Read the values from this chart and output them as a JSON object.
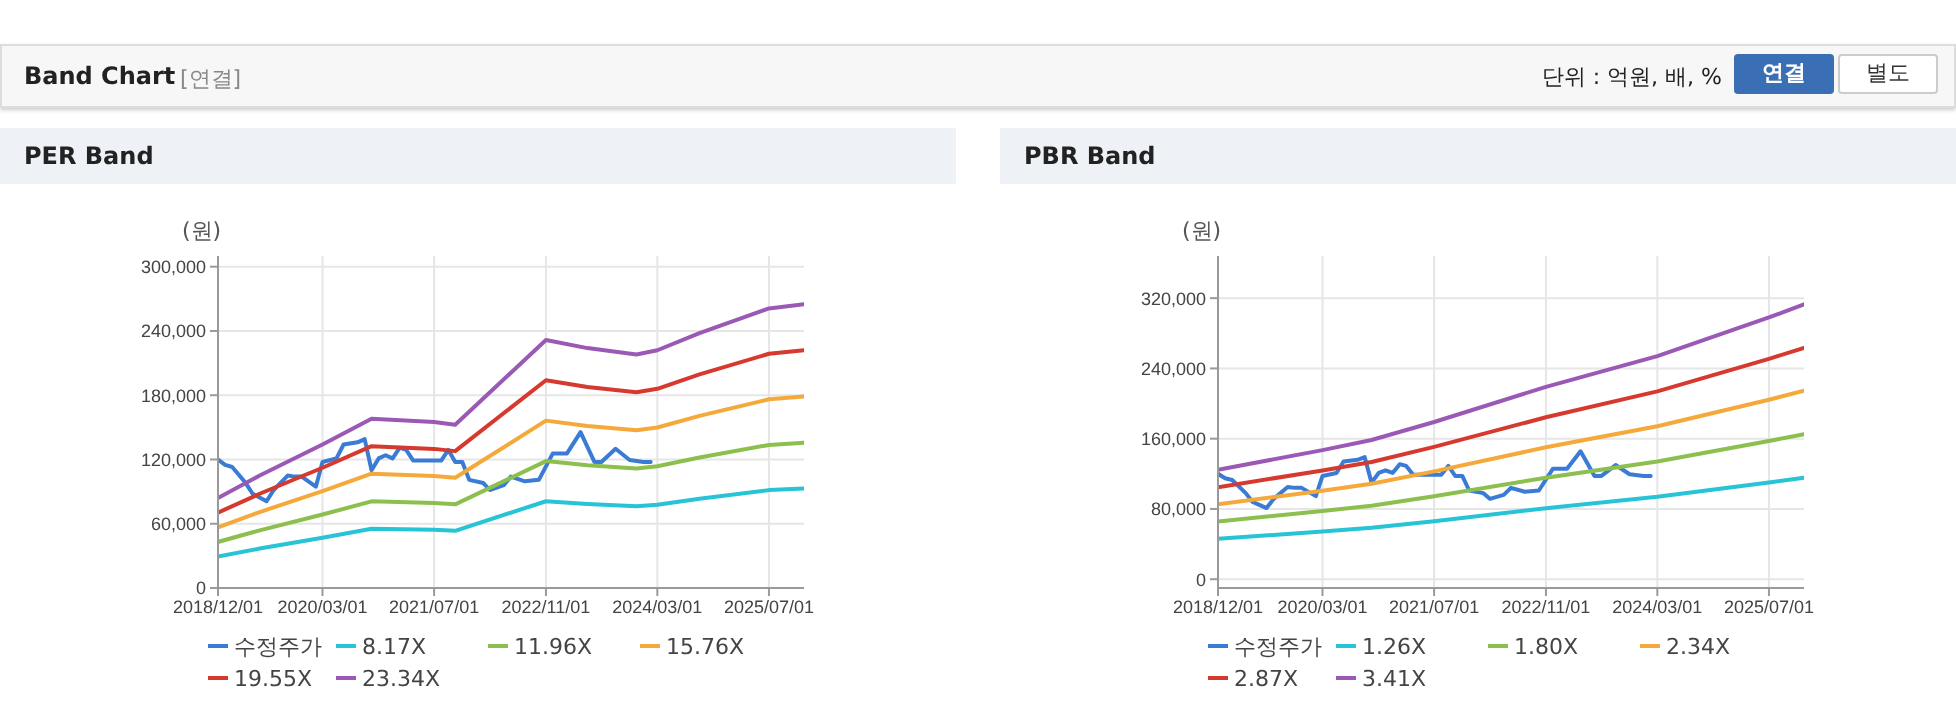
{
  "chart_data": [
    {
      "type": "line",
      "title": "PER Band",
      "ylabel": "(원)",
      "annotations": [
        "Band Chart",
        "[연결]",
        "단위 : 억원, 배, %",
        "연결",
        "별도"
      ],
      "xlim": [
        "2018-12-01",
        "2025-12-01"
      ],
      "xticks": [
        {
          "value": "2018-12-01",
          "label": "2018/12/01"
        },
        {
          "value": "2020-03-01",
          "label": "2020/03/01"
        },
        {
          "value": "2021-07-01",
          "label": "2021/07/01"
        },
        {
          "value": "2022-11-01",
          "label": "2022/11/01"
        },
        {
          "value": "2024-03-01",
          "label": "2024/03/01"
        },
        {
          "value": "2025-07-01",
          "label": "2025/07/01"
        }
      ],
      "ylim": [
        0,
        310000
      ],
      "yticks": [
        {
          "value": 0,
          "label": "0"
        },
        {
          "value": 60000,
          "label": "60,000"
        },
        {
          "value": 120000,
          "label": "120,000"
        },
        {
          "value": 180000,
          "label": "180,000"
        },
        {
          "value": 240000,
          "label": "240,000"
        },
        {
          "value": 300000,
          "label": "300,000"
        }
      ],
      "grid": true,
      "legend": "bottom",
      "marker": "none",
      "line_style": "solid",
      "series": [
        {
          "name": "수정주가",
          "color": "#3a7bd5",
          "x": [
            "2018-12",
            "2019-01",
            "2019-02",
            "2019-04",
            "2019-05",
            "2019-07",
            "2019-08",
            "2019-10",
            "2019-11",
            "2019-12",
            "2020-02",
            "2020-03",
            "2020-05",
            "2020-06",
            "2020-08",
            "2020-09",
            "2020-10",
            "2020-11",
            "2020-12",
            "2021-01",
            "2021-02",
            "2021-03",
            "2021-04",
            "2021-08",
            "2021-09",
            "2021-10",
            "2021-11",
            "2021-12",
            "2022-02",
            "2022-03",
            "2022-05",
            "2022-06",
            "2022-08",
            "2022-10",
            "2022-12",
            "2023-02",
            "2023-04",
            "2023-06",
            "2023-07",
            "2023-09",
            "2023-11",
            "2024-01",
            "2024-02"
          ],
          "values": [
            120000,
            115000,
            113000,
            98000,
            88000,
            81000,
            91500,
            105000,
            104000,
            104000,
            94600,
            117600,
            121000,
            134000,
            136000,
            139000,
            110000,
            121000,
            124000,
            121000,
            131000,
            129000,
            119000,
            119000,
            129000,
            117600,
            117600,
            101000,
            98000,
            91500,
            96000,
            104000,
            99600,
            101000,
            125700,
            125700,
            145600,
            117600,
            117600,
            130000,
            119500,
            117600,
            117600
          ]
        },
        {
          "name": "8.17X",
          "color": "#27c3d6",
          "x": [
            "2018-12",
            "2019-06",
            "2020-03",
            "2020-10",
            "2021-07",
            "2021-10",
            "2022-11",
            "2023-05",
            "2023-12",
            "2024-03",
            "2024-09",
            "2025-07",
            "2025-12"
          ],
          "values": [
            29400,
            36800,
            46900,
            55300,
            54300,
            53400,
            81000,
            78400,
            76300,
            77700,
            83300,
            91400,
            92800
          ]
        },
        {
          "name": "11.96X",
          "color": "#8dbf4e",
          "x": [
            "2018-12",
            "2019-06",
            "2020-03",
            "2020-10",
            "2021-07",
            "2021-10",
            "2022-11",
            "2023-05",
            "2023-12",
            "2024-03",
            "2024-09",
            "2025-07",
            "2025-12"
          ],
          "values": [
            43000,
            53800,
            68600,
            80900,
            79400,
            78100,
            118500,
            114700,
            111600,
            113700,
            121900,
            133600,
            135700
          ]
        },
        {
          "name": "15.76X",
          "color": "#f5a93a",
          "x": [
            "2018-12",
            "2019-06",
            "2020-03",
            "2020-10",
            "2021-07",
            "2021-10",
            "2022-11",
            "2023-05",
            "2023-12",
            "2024-03",
            "2024-09",
            "2025-07",
            "2025-12"
          ],
          "values": [
            56700,
            70900,
            90500,
            106700,
            104600,
            102900,
            156300,
            151200,
            147200,
            149900,
            160700,
            176200,
            178900
          ]
        },
        {
          "name": "19.55X",
          "color": "#d63a2f",
          "x": [
            "2018-12",
            "2019-06",
            "2020-03",
            "2020-10",
            "2021-07",
            "2021-10",
            "2022-11",
            "2023-05",
            "2023-12",
            "2024-03",
            "2024-09",
            "2025-07",
            "2025-12"
          ],
          "values": [
            70400,
            88000,
            112300,
            132400,
            129900,
            127800,
            194000,
            187700,
            182700,
            186000,
            199400,
            218700,
            222000
          ]
        },
        {
          "name": "23.34X",
          "color": "#9b59b6",
          "x": [
            "2018-12",
            "2019-06",
            "2020-03",
            "2020-10",
            "2021-07",
            "2021-10",
            "2022-11",
            "2023-05",
            "2023-12",
            "2024-03",
            "2024-09",
            "2025-07",
            "2025-12"
          ],
          "values": [
            84000,
            105000,
            134000,
            158000,
            155000,
            152500,
            231500,
            224000,
            218000,
            222000,
            238000,
            261000,
            265000
          ]
        }
      ]
    },
    {
      "type": "line",
      "title": "PBR Band",
      "ylabel": "(원)",
      "xlim": [
        "2018-12-01",
        "2025-12-01"
      ],
      "xticks": [
        {
          "value": "2018-12-01",
          "label": "2018/12/01"
        },
        {
          "value": "2020-03-01",
          "label": "2020/03/01"
        },
        {
          "value": "2021-07-01",
          "label": "2021/07/01"
        },
        {
          "value": "2022-11-01",
          "label": "2022/11/01"
        },
        {
          "value": "2024-03-01",
          "label": "2024/03/01"
        },
        {
          "value": "2025-07-01",
          "label": "2025/07/01"
        }
      ],
      "ylim": [
        -10000,
        368000
      ],
      "yticks": [
        {
          "value": 0,
          "label": "0"
        },
        {
          "value": 80000,
          "label": "80,000"
        },
        {
          "value": 160000,
          "label": "160,000"
        },
        {
          "value": 240000,
          "label": "240,000"
        },
        {
          "value": 320000,
          "label": "320,000"
        }
      ],
      "grid": true,
      "legend": "bottom",
      "marker": "none",
      "line_style": "solid",
      "series": [
        {
          "name": "수정주가",
          "color": "#3a7bd5",
          "x": [
            "2018-12",
            "2019-01",
            "2019-02",
            "2019-04",
            "2019-05",
            "2019-07",
            "2019-08",
            "2019-10",
            "2019-11",
            "2019-12",
            "2020-02",
            "2020-03",
            "2020-05",
            "2020-06",
            "2020-08",
            "2020-09",
            "2020-10",
            "2020-11",
            "2020-12",
            "2021-01",
            "2021-02",
            "2021-03",
            "2021-04",
            "2021-08",
            "2021-09",
            "2021-10",
            "2021-11",
            "2021-12",
            "2022-02",
            "2022-03",
            "2022-05",
            "2022-06",
            "2022-08",
            "2022-10",
            "2022-12",
            "2023-02",
            "2023-04",
            "2023-06",
            "2023-07",
            "2023-09",
            "2023-11",
            "2024-01",
            "2024-02"
          ],
          "values": [
            120000,
            115000,
            113000,
            98000,
            88000,
            81000,
            91500,
            105000,
            104000,
            104000,
            94600,
            117600,
            121000,
            134000,
            136000,
            139000,
            110000,
            121000,
            124000,
            121000,
            131000,
            129000,
            119000,
            119000,
            129000,
            117600,
            117600,
            101000,
            98000,
            91500,
            96000,
            104000,
            99600,
            101000,
            125700,
            125700,
            145600,
            117600,
            117600,
            130000,
            119500,
            117600,
            117600
          ]
        },
        {
          "name": "1.26X",
          "color": "#27c3d6",
          "x": [
            "2018-12",
            "2020-03",
            "2020-10",
            "2021-07",
            "2022-11",
            "2024-03",
            "2025-07",
            "2025-12"
          ],
          "values": [
            46000,
            54300,
            58600,
            66100,
            80900,
            93900,
            110100,
            115600
          ]
        },
        {
          "name": "1.80X",
          "color": "#8dbf4e",
          "x": [
            "2018-12",
            "2020-03",
            "2020-10",
            "2021-07",
            "2022-11",
            "2024-03",
            "2025-07",
            "2025-12"
          ],
          "values": [
            65700,
            77600,
            83700,
            94500,
            115600,
            134100,
            157300,
            165200
          ]
        },
        {
          "name": "2.34X",
          "color": "#f5a93a",
          "x": [
            "2018-12",
            "2020-03",
            "2020-10",
            "2021-07",
            "2022-11",
            "2024-03",
            "2025-07",
            "2025-12"
          ],
          "values": [
            85400,
            100800,
            108700,
            122800,
            150200,
            174200,
            204400,
            214700
          ]
        },
        {
          "name": "2.87X",
          "color": "#d63a2f",
          "x": [
            "2018-12",
            "2020-03",
            "2020-10",
            "2021-07",
            "2022-11",
            "2024-03",
            "2025-07",
            "2025-12"
          ],
          "values": [
            104800,
            123800,
            133500,
            150700,
            184400,
            213900,
            250900,
            263500
          ]
        },
        {
          "name": "3.41X",
          "color": "#9b59b6",
          "x": [
            "2018-12",
            "2020-03",
            "2020-10",
            "2021-07",
            "2022-11",
            "2024-03",
            "2025-07",
            "2025-12"
          ],
          "values": [
            124500,
            147000,
            158500,
            179000,
            219000,
            254000,
            298000,
            313000
          ]
        }
      ]
    }
  ]
}
